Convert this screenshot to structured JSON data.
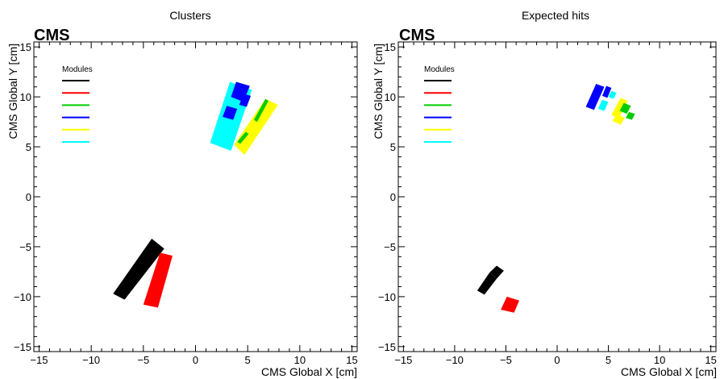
{
  "chart_data": [
    {
      "type": "heatmap",
      "title": "Clusters",
      "experiment_label": "CMS",
      "xlabel": "CMS Global X [cm]",
      "ylabel": "CMS Global Y [cm]",
      "xlim": [
        -15.5,
        15.5
      ],
      "ylim": [
        -15.5,
        15.5
      ],
      "xticks": [
        -15,
        -10,
        -5,
        0,
        5,
        10,
        15
      ],
      "yticks": [
        -15,
        -10,
        -5,
        0,
        5,
        10,
        15
      ],
      "legend": {
        "title": "Modules",
        "placement": "top-left",
        "entries": [
          {
            "color": "#000000"
          },
          {
            "color": "#ff0000"
          },
          {
            "color": "#00cc00"
          },
          {
            "color": "#0000ff"
          },
          {
            "color": "#ffff00"
          },
          {
            "color": "#00ffff"
          }
        ]
      },
      "regions": [
        {
          "module": 0,
          "color": "#000000",
          "corners": [
            [
              -7.9,
              -9.7
            ],
            [
              -4.2,
              -4.2
            ],
            [
              -3.0,
              -5.2
            ],
            [
              -6.8,
              -10.3
            ]
          ]
        },
        {
          "module": 1,
          "color": "#ff0000",
          "corners": [
            [
              -5.0,
              -10.8
            ],
            [
              -3.4,
              -5.6
            ],
            [
              -2.2,
              -5.9
            ],
            [
              -3.6,
              -11.1
            ]
          ]
        },
        {
          "module": 5,
          "color": "#00ffff",
          "corners": [
            [
              1.4,
              5.4
            ],
            [
              3.3,
              11.5
            ],
            [
              5.4,
              10.7
            ],
            [
              3.4,
              4.6
            ]
          ]
        },
        {
          "module": 3,
          "color": "#0000ff",
          "corners": [
            [
              3.4,
              10.0
            ],
            [
              3.9,
              11.5
            ],
            [
              5.2,
              11.1
            ],
            [
              4.6,
              9.5
            ]
          ]
        },
        {
          "module": 3,
          "color": "#0000ff",
          "corners": [
            [
              2.6,
              8.0
            ],
            [
              3.0,
              9.1
            ],
            [
              4.0,
              8.8
            ],
            [
              3.6,
              7.7
            ]
          ]
        },
        {
          "module": 3,
          "color": "#0000ff",
          "corners": [
            [
              4.2,
              9.2
            ],
            [
              4.6,
              10.3
            ],
            [
              5.3,
              10.1
            ],
            [
              4.9,
              9.0
            ]
          ]
        },
        {
          "module": 4,
          "color": "#ffff00",
          "corners": [
            [
              3.7,
              5.2
            ],
            [
              6.7,
              9.8
            ],
            [
              7.9,
              9.2
            ],
            [
              4.7,
              4.2
            ]
          ]
        },
        {
          "module": 2,
          "color": "#00cc00",
          "corners": [
            [
              5.6,
              7.7
            ],
            [
              6.7,
              9.8
            ],
            [
              7.0,
              9.6
            ],
            [
              5.9,
              7.5
            ]
          ]
        },
        {
          "module": 2,
          "color": "#00cc00",
          "corners": [
            [
              4.0,
              5.5
            ],
            [
              4.8,
              6.5
            ],
            [
              5.1,
              6.3
            ],
            [
              4.3,
              5.3
            ]
          ]
        }
      ]
    },
    {
      "type": "heatmap",
      "title": "Expected hits",
      "experiment_label": "CMS",
      "xlabel": "CMS Global X [cm]",
      "ylabel": "CMS Global Y [cm]",
      "xlim": [
        -15.5,
        15.5
      ],
      "ylim": [
        -15.5,
        15.5
      ],
      "xticks": [
        -15,
        -10,
        -5,
        0,
        5,
        10,
        15
      ],
      "yticks": [
        -15,
        -10,
        -5,
        0,
        5,
        10,
        15
      ],
      "legend": {
        "title": "Modules",
        "placement": "top-left",
        "entries": [
          {
            "color": "#000000"
          },
          {
            "color": "#ff0000"
          },
          {
            "color": "#00cc00"
          },
          {
            "color": "#0000ff"
          },
          {
            "color": "#ffff00"
          },
          {
            "color": "#00ffff"
          }
        ]
      },
      "regions": [
        {
          "module": 0,
          "color": "#000000",
          "corners": [
            [
              -7.8,
              -9.4
            ],
            [
              -6.6,
              -7.6
            ],
            [
              -5.9,
              -8.2
            ],
            [
              -7.1,
              -9.8
            ]
          ]
        },
        {
          "module": 0,
          "color": "#000000",
          "corners": [
            [
              -6.6,
              -7.6
            ],
            [
              -5.9,
              -6.9
            ],
            [
              -5.2,
              -7.4
            ],
            [
              -5.9,
              -8.2
            ]
          ]
        },
        {
          "module": 1,
          "color": "#ff0000",
          "corners": [
            [
              -5.5,
              -11.3
            ],
            [
              -4.9,
              -10.0
            ],
            [
              -3.7,
              -10.4
            ],
            [
              -4.2,
              -11.6
            ]
          ]
        },
        {
          "module": 3,
          "color": "#0000ff",
          "corners": [
            [
              2.8,
              9.0
            ],
            [
              3.8,
              11.3
            ],
            [
              4.6,
              11.0
            ],
            [
              3.6,
              8.7
            ]
          ]
        },
        {
          "module": 3,
          "color": "#0000ff",
          "corners": [
            [
              4.4,
              10.1
            ],
            [
              4.8,
              11.1
            ],
            [
              5.3,
              10.9
            ],
            [
              4.9,
              9.9
            ]
          ]
        },
        {
          "module": 5,
          "color": "#00ffff",
          "corners": [
            [
              4.0,
              8.8
            ],
            [
              4.4,
              9.7
            ],
            [
              5.0,
              9.5
            ],
            [
              4.6,
              8.6
            ]
          ]
        },
        {
          "module": 5,
          "color": "#00ffff",
          "corners": [
            [
              5.0,
              10.0
            ],
            [
              5.3,
              10.6
            ],
            [
              5.8,
              10.4
            ],
            [
              5.5,
              9.8
            ]
          ]
        },
        {
          "module": 4,
          "color": "#ffff00",
          "corners": [
            [
              5.3,
              8.2
            ],
            [
              6.2,
              9.9
            ],
            [
              6.9,
              9.6
            ],
            [
              6.0,
              7.8
            ]
          ]
        },
        {
          "module": 2,
          "color": "#00cc00",
          "corners": [
            [
              6.1,
              8.6
            ],
            [
              6.5,
              9.4
            ],
            [
              7.2,
              9.1
            ],
            [
              6.8,
              8.3
            ]
          ]
        },
        {
          "module": 2,
          "color": "#00cc00",
          "corners": [
            [
              6.7,
              7.9
            ],
            [
              7.0,
              8.5
            ],
            [
              7.6,
              8.3
            ],
            [
              7.3,
              7.7
            ]
          ]
        },
        {
          "module": 4,
          "color": "#ffff00",
          "corners": [
            [
              5.4,
              7.6
            ],
            [
              5.8,
              8.3
            ],
            [
              6.6,
              7.9
            ],
            [
              6.2,
              7.2
            ]
          ]
        }
      ]
    }
  ]
}
